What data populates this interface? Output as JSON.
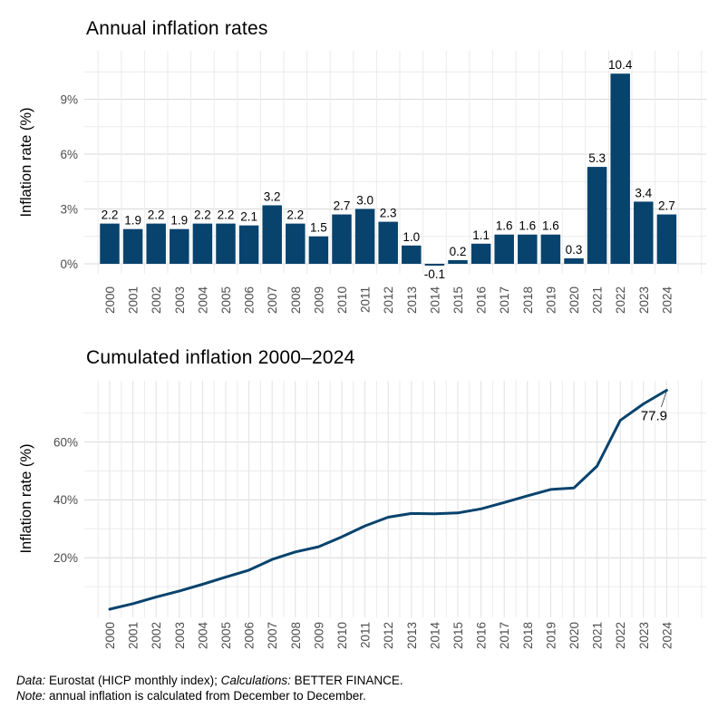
{
  "figure": {
    "background": "#ffffff"
  },
  "colors": {
    "series": "#08436d",
    "grid_major": "#d9d9d9",
    "grid_minor": "#ebebeb",
    "axis_text": "#4d4d4d",
    "label_text": "#000000",
    "leader_line": "#333333"
  },
  "chart_data": [
    {
      "type": "bar",
      "title": "Annual inflation rates",
      "ylabel": "Inflation rate (%)",
      "xlabel": "",
      "categories": [
        "2000",
        "2001",
        "2002",
        "2003",
        "2004",
        "2005",
        "2006",
        "2007",
        "2008",
        "2009",
        "2010",
        "2011",
        "2012",
        "2013",
        "2014",
        "2015",
        "2016",
        "2017",
        "2018",
        "2019",
        "2020",
        "2021",
        "2022",
        "2023",
        "2024"
      ],
      "values": [
        2.2,
        1.9,
        2.2,
        1.9,
        2.2,
        2.2,
        2.1,
        3.2,
        2.2,
        1.5,
        2.7,
        3.0,
        2.3,
        1.0,
        -0.1,
        0.2,
        1.1,
        1.6,
        1.6,
        1.6,
        0.3,
        5.3,
        10.4,
        3.4,
        2.7
      ],
      "bar_labels": [
        "2.2",
        "1.9",
        "2.2",
        "1.9",
        "2.2",
        "2.2",
        "2.1",
        "3.2",
        "2.2",
        "1.5",
        "2.7",
        "3.0",
        "2.3",
        "1.0",
        "-0.1",
        "0.2",
        "1.1",
        "1.6",
        "1.6",
        "1.6",
        "0.3",
        "5.3",
        "10.4",
        "3.4",
        "2.7"
      ],
      "yticks": [
        {
          "value": 0,
          "label": "0%"
        },
        {
          "value": 3,
          "label": "3%"
        },
        {
          "value": 6,
          "label": "6%"
        },
        {
          "value": 9,
          "label": "9%"
        }
      ],
      "yticks_minor": [
        1.5,
        4.5,
        7.5,
        10.5
      ],
      "ylim": [
        -0.6,
        11.6
      ],
      "grid": true,
      "legend": false
    },
    {
      "type": "line",
      "title": "Cumulated inflation 2000–2024",
      "ylabel": "Inflation rate (%)",
      "xlabel": "",
      "categories": [
        "2000",
        "2001",
        "2002",
        "2003",
        "2004",
        "2005",
        "2006",
        "2007",
        "2008",
        "2009",
        "2010",
        "2011",
        "2012",
        "2013",
        "2014",
        "2015",
        "2016",
        "2017",
        "2018",
        "2019",
        "2020",
        "2021",
        "2022",
        "2023",
        "2024"
      ],
      "values": [
        2.2,
        4.1,
        6.4,
        8.5,
        10.8,
        13.3,
        15.7,
        19.4,
        22.0,
        23.8,
        27.2,
        31.0,
        34.0,
        35.3,
        35.2,
        35.5,
        36.9,
        39.1,
        41.4,
        43.6,
        44.1,
        51.7,
        67.5,
        73.2,
        77.9
      ],
      "end_label": "77.9",
      "yticks": [
        {
          "value": 20,
          "label": "20%"
        },
        {
          "value": 40,
          "label": "40%"
        },
        {
          "value": 60,
          "label": "60%"
        }
      ],
      "yticks_minor": [
        10,
        30,
        50,
        70
      ],
      "ylim": [
        -0.6,
        81
      ],
      "grid": true,
      "legend": false
    }
  ],
  "caption": {
    "line1": [
      {
        "t": "Data:",
        "i": true
      },
      {
        "t": " Eurostat (HICP monthly index); ",
        "i": false
      },
      {
        "t": "Calculations:",
        "i": true
      },
      {
        "t": " BETTER FINANCE.",
        "i": false
      }
    ],
    "line2": [
      {
        "t": "Note:",
        "i": true
      },
      {
        "t": " annual inflation is calculated from December to December.",
        "i": false
      }
    ]
  }
}
